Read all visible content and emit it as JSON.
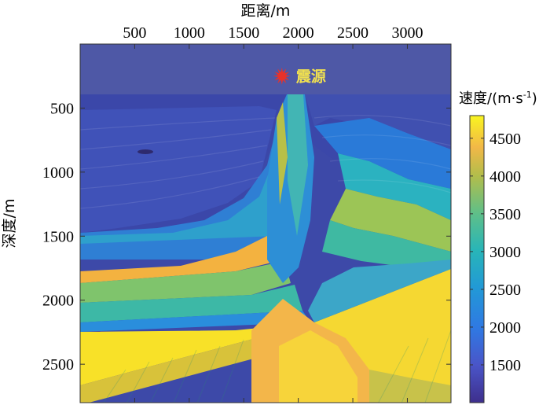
{
  "chart_data": {
    "type": "heatmap",
    "xlabel": "距离/m",
    "ylabel": "深度/m",
    "xlim": [
      0,
      3400
    ],
    "ylim": [
      2800,
      0
    ],
    "x_ticks": [
      500,
      1000,
      1500,
      2000,
      2500,
      3000
    ],
    "y_ticks": [
      500,
      1000,
      1500,
      2000,
      2500
    ],
    "colorbar": {
      "label": "速度/(m·s",
      "label_sup": "-1",
      "label_close": ")",
      "range": [
        1000,
        4800
      ],
      "ticks": [
        1500,
        2000,
        2500,
        3000,
        3500,
        4000,
        4500
      ]
    },
    "annotations": [
      {
        "text": "震源",
        "x": 1850,
        "y": 250,
        "marker": "red-star"
      }
    ],
    "colormap": [
      "#3e26a8",
      "#4748d9",
      "#2e6ff0",
      "#1d92e0",
      "#16b0c2",
      "#3ebfa4",
      "#81c46a",
      "#bebb3c",
      "#f6b93c",
      "#fadf2a",
      "#f9fb0e"
    ]
  }
}
